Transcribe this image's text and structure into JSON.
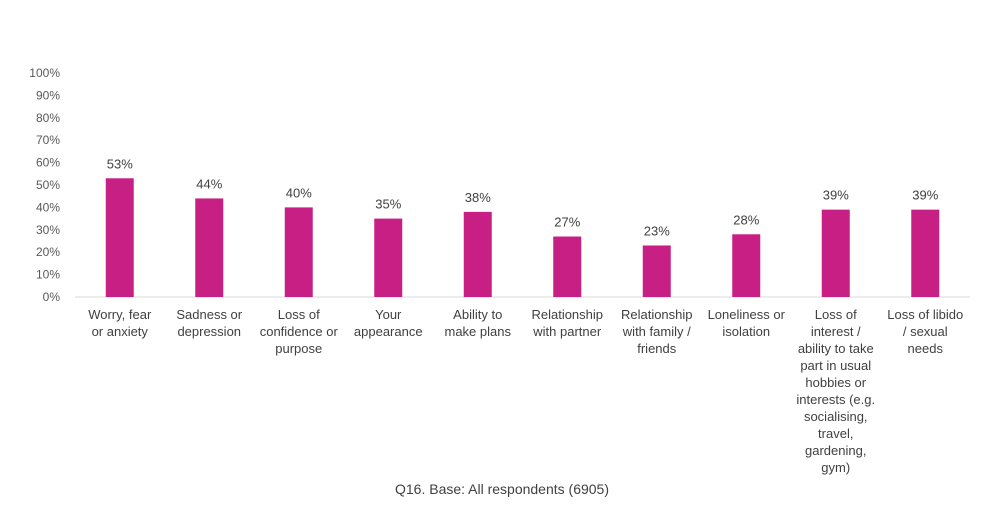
{
  "chart_data": {
    "type": "bar",
    "categories": [
      [
        "Worry, fear",
        "or anxiety"
      ],
      [
        "Sadness or",
        "depression"
      ],
      [
        "Loss of",
        "confidence or",
        "purpose"
      ],
      [
        "Your",
        "appearance"
      ],
      [
        "Ability to",
        "make plans"
      ],
      [
        "Relationship",
        "with partner"
      ],
      [
        "Relationship",
        "with family /",
        "friends"
      ],
      [
        "Loneliness or",
        "isolation"
      ],
      [
        "Loss of",
        "interest /",
        "ability to take",
        "part in usual",
        "hobbies or",
        "interests (e.g.",
        "socialising,",
        "travel,",
        "gardening,",
        "gym)"
      ],
      [
        "Loss of libido",
        "/ sexual",
        "needs"
      ]
    ],
    "values": [
      53,
      44,
      40,
      35,
      38,
      27,
      23,
      28,
      39,
      39
    ],
    "data_labels": [
      "53%",
      "44%",
      "40%",
      "35%",
      "38%",
      "27%",
      "23%",
      "28%",
      "39%",
      "39%"
    ],
    "y_ticks": [
      "0%",
      "10%",
      "20%",
      "30%",
      "40%",
      "50%",
      "60%",
      "70%",
      "80%",
      "90%",
      "100%"
    ],
    "ylim": [
      0,
      100
    ],
    "bar_color": "#c81f84",
    "grid": false,
    "legend": "none"
  },
  "caption": "Q16. Base: All respondents (6905)"
}
